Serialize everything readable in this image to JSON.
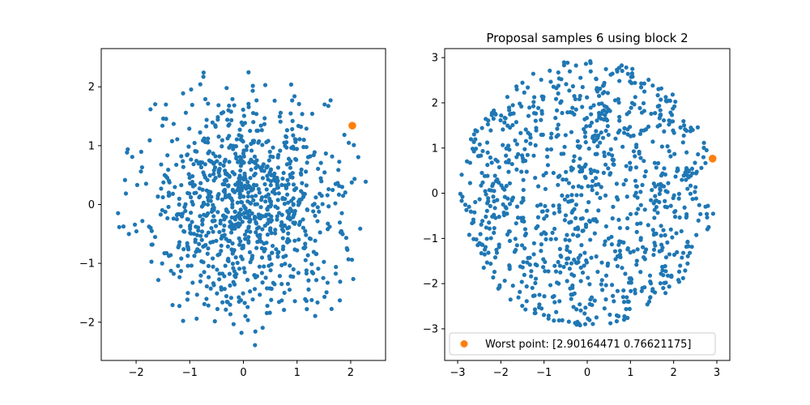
{
  "figure": {
    "background": "#ffffff"
  },
  "chart_data": [
    {
      "type": "scatter",
      "title": "",
      "xlabel": "",
      "ylabel": "",
      "xlim": [
        -2.65,
        2.65
      ],
      "ylim": [
        -2.65,
        2.65
      ],
      "xticks": [
        -2,
        -1,
        0,
        1,
        2
      ],
      "yticks": [
        -2,
        -1,
        0,
        1,
        2
      ],
      "xtick_labels": [
        "−2",
        "−1",
        "0",
        "1",
        "2"
      ],
      "ytick_labels": [
        "−2",
        "−1",
        "0",
        "1",
        "2"
      ],
      "grid": false,
      "legend": null,
      "series": [
        {
          "role": "samples",
          "color": "#1f77b4",
          "marker": "point",
          "distribution": "gaussian-like cloud clipped to radius ~2.5",
          "count": 1000
        },
        {
          "role": "worst-point",
          "color": "#ff7f0e",
          "marker": "circle",
          "x": [
            2.03
          ],
          "y": [
            1.34
          ]
        }
      ]
    },
    {
      "type": "scatter",
      "title": "Proposal samples 6 using block 2",
      "xlabel": "",
      "ylabel": "",
      "xlim": [
        -3.3,
        3.3
      ],
      "ylim": [
        -3.7,
        3.2
      ],
      "xticks": [
        -3,
        -2,
        -1,
        0,
        1,
        2,
        3
      ],
      "yticks": [
        -3,
        -2,
        -1,
        0,
        1,
        2,
        3
      ],
      "xtick_labels": [
        "−3",
        "−2",
        "−1",
        "0",
        "1",
        "2",
        "3"
      ],
      "ytick_labels": [
        "−3",
        "−2",
        "−1",
        "0",
        "1",
        "2",
        "3"
      ],
      "grid": false,
      "legend": {
        "position": "lower-left",
        "entries": [
          "Worst point: [2.90164471 0.76621175]"
        ]
      },
      "series": [
        {
          "role": "samples",
          "color": "#1f77b4",
          "marker": "point",
          "distribution": "uniform disk of radius ~2.95",
          "count": 1000
        },
        {
          "name": "Worst point: [2.90164471 0.76621175]",
          "role": "worst-point",
          "color": "#ff7f0e",
          "marker": "circle",
          "x": [
            2.90164471
          ],
          "y": [
            0.76621175
          ]
        }
      ]
    }
  ]
}
